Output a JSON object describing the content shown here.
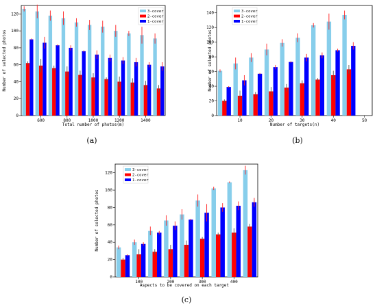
{
  "chart_data": [
    {
      "type": "bar",
      "caption": "(a)",
      "xlabel": "Total number of photos(m)",
      "ylabel": "Number of selected photos",
      "ylim": [
        0,
        130
      ],
      "yticks": [
        0,
        20,
        40,
        60,
        80,
        100,
        120
      ],
      "x": [
        500,
        600,
        700,
        800,
        900,
        1000,
        1100,
        1200,
        1300,
        1400,
        1500
      ],
      "xticks": [
        600,
        800,
        1000,
        1200,
        1400
      ],
      "legend": "top-right",
      "series": [
        {
          "name": "3-cover",
          "color": "#87ceeb",
          "values": [
            126,
            123,
            118,
            115,
            110,
            107,
            105,
            100,
            97,
            95,
            91
          ],
          "errors": [
            3,
            8,
            6,
            8,
            5,
            6,
            7,
            7,
            3,
            10,
            6
          ]
        },
        {
          "name": "2-cover",
          "color": "#ff0000",
          "values": [
            62,
            59,
            56,
            52,
            48,
            45,
            43,
            40,
            39,
            36,
            32
          ],
          "errors": [
            2,
            8,
            3,
            6,
            5,
            5,
            2,
            6,
            5,
            5,
            4
          ]
        },
        {
          "name": "1-cover",
          "color": "#0000ff",
          "values": [
            90,
            86,
            83,
            80,
            76,
            72,
            68,
            65,
            63,
            60,
            58
          ],
          "errors": [
            1,
            7,
            1,
            3,
            1,
            5,
            4,
            4,
            5,
            3,
            5
          ]
        }
      ]
    },
    {
      "type": "bar",
      "caption": "(b)",
      "xlabel": "Number of targets(n)",
      "ylabel": "Number of selected photos",
      "ylim": [
        0,
        150
      ],
      "yticks": [
        0,
        20,
        40,
        60,
        80,
        100,
        120,
        140
      ],
      "x": [
        5,
        10,
        15,
        20,
        25,
        30,
        35,
        40,
        45,
        50
      ],
      "xticks": [
        10,
        20,
        30,
        40,
        50
      ],
      "legend": "top-left",
      "series": [
        {
          "name": "3-cover",
          "color": "#87ceeb",
          "values": [
            61,
            71,
            79,
            90,
            99,
            106,
            123,
            128,
            137,
            0
          ],
          "errors": [
            2,
            8,
            6,
            8,
            5,
            6,
            3,
            11,
            6,
            0
          ]
        },
        {
          "name": "2-cover",
          "color": "#ff0000",
          "values": [
            20,
            27,
            29,
            33,
            38,
            44,
            49,
            55,
            63,
            0
          ],
          "errors": [
            2,
            7,
            3,
            6,
            5,
            4,
            2,
            6,
            6,
            0
          ]
        },
        {
          "name": "1-cover",
          "color": "#0000ff",
          "values": [
            39,
            48,
            57,
            66,
            73,
            79,
            82,
            89,
            95,
            0
          ],
          "errors": [
            1,
            7,
            1,
            3,
            1,
            5,
            4,
            2,
            5,
            0
          ]
        }
      ]
    },
    {
      "type": "bar",
      "caption": "(c)",
      "xlabel": "Aspects to be covered on each target",
      "ylabel": "Number of selected photos",
      "ylim": [
        0,
        130
      ],
      "yticks": [
        0,
        20,
        40,
        60,
        80,
        100,
        120
      ],
      "x": [
        50,
        100,
        150,
        200,
        250,
        300,
        350,
        400,
        450
      ],
      "xticks": [
        100,
        200,
        300,
        400
      ],
      "legend": "top-left",
      "series": [
        {
          "name": "3-cover",
          "color": "#87ceeb",
          "values": [
            34,
            40,
            53,
            65,
            72,
            88,
            102,
            109,
            123
          ],
          "errors": [
            2,
            3,
            5,
            6,
            6,
            7,
            2,
            1,
            5
          ]
        },
        {
          "name": "2-cover",
          "color": "#ff0000",
          "values": [
            20,
            26,
            29,
            32,
            37,
            44,
            49,
            51,
            58
          ],
          "errors": [
            2,
            6,
            3,
            5,
            5,
            2,
            2,
            5,
            3
          ]
        },
        {
          "name": "1-cover",
          "color": "#0000ff",
          "values": [
            25,
            38,
            51,
            59,
            66,
            74,
            80,
            82,
            86
          ],
          "errors": [
            1,
            2,
            2,
            5,
            1,
            10,
            5,
            5,
            5
          ]
        }
      ]
    }
  ]
}
